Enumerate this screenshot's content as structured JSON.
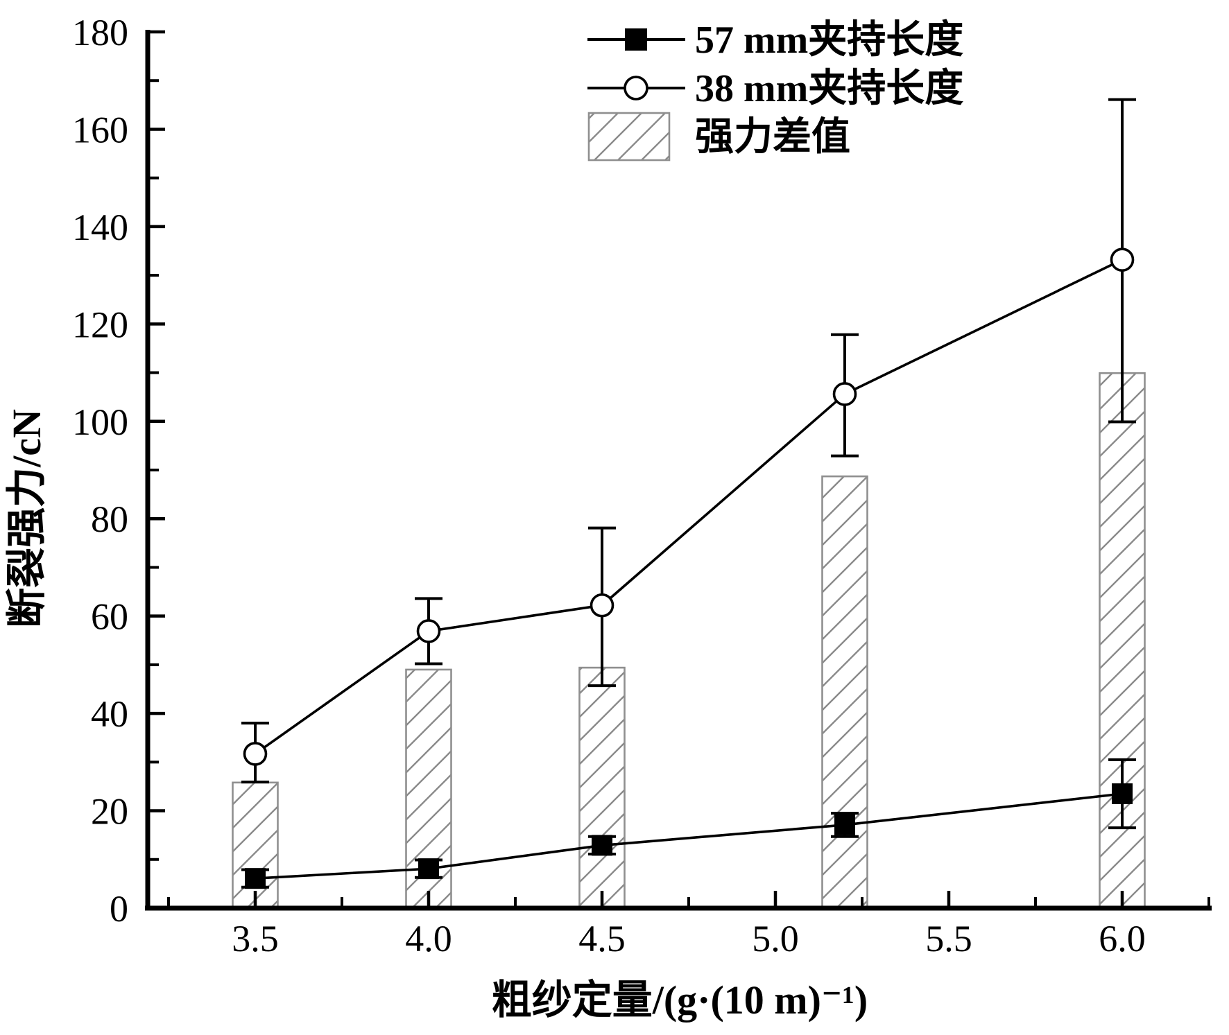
{
  "chart_data": {
    "type": "line+bar",
    "title": "",
    "xlabel": "粗纱定量/(g·(10 m)⁻¹)",
    "ylabel": "断裂强力/cN",
    "xlim": [
      3.2,
      6.26
    ],
    "ylim": [
      0,
      180
    ],
    "grid": false,
    "legend_position": "top-center-inside",
    "x_major_ticks": [
      3.5,
      4.0,
      4.5,
      5.0,
      5.5,
      6.0
    ],
    "x_tick_labels": [
      "3.5",
      "4.0",
      "4.5",
      "5.0",
      "5.5",
      "6.0"
    ],
    "x_minor_ticks": [
      3.25,
      3.75,
      4.25,
      4.75,
      5.25,
      5.75,
      6.25
    ],
    "y_major_ticks": [
      0,
      20,
      40,
      60,
      80,
      100,
      120,
      140,
      160,
      180
    ],
    "y_tick_labels": [
      "0",
      "20",
      "40",
      "60",
      "80",
      "100",
      "120",
      "140",
      "160",
      "180"
    ],
    "y_minor_ticks": [
      10,
      30,
      50,
      70,
      90,
      110,
      130,
      150,
      170
    ],
    "x": [
      3.5,
      4.0,
      4.5,
      5.2,
      6.0
    ],
    "series": [
      {
        "name": "57 mm夹持长度",
        "type": "line",
        "marker": "filled-square",
        "values": [
          6.1,
          8.1,
          12.9,
          17.1,
          23.5
        ],
        "error_plus": [
          1.8,
          1.8,
          1.8,
          2.4,
          7.0
        ],
        "error_minus": [
          1.8,
          1.8,
          1.8,
          2.4,
          7.0
        ]
      },
      {
        "name": "38 mm夹持长度",
        "type": "line",
        "marker": "open-circle",
        "values": [
          31.7,
          56.9,
          62.2,
          105.6,
          133.2
        ],
        "error_plus": [
          6.3,
          6.7,
          15.9,
          12.2,
          32.9
        ],
        "error_minus": [
          5.8,
          6.7,
          16.5,
          12.7,
          33.3
        ]
      },
      {
        "name": "强力差值",
        "type": "bar",
        "hatch": "diagonal",
        "bar_width_units": 0.13,
        "values": [
          25.8,
          49.0,
          49.4,
          88.7,
          109.9
        ]
      }
    ],
    "colors": {
      "line": "#000000",
      "marker_fill": "#000000",
      "circle_fill": "#ffffff",
      "bar_fill": "#ffffff",
      "bar_border": "#8f8f8f",
      "hatch_line": "#8a8a8a",
      "axis": "#000000",
      "background": "#ffffff"
    }
  }
}
